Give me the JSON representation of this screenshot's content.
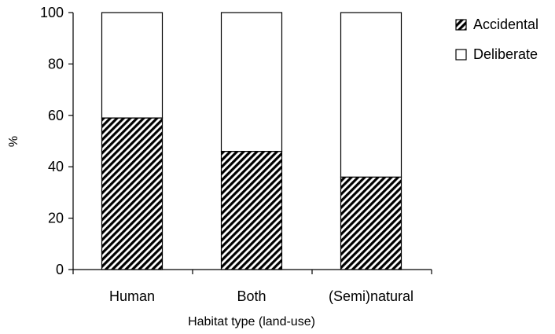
{
  "chart_data": {
    "type": "bar",
    "stacked": true,
    "percent_stacked": true,
    "title": "",
    "xlabel": "Habitat type (land-use)",
    "ylabel": "%",
    "ylim": [
      0,
      100
    ],
    "yticks": [
      0,
      20,
      40,
      60,
      80,
      100
    ],
    "categories": [
      "Human",
      "Both",
      "(Semi)natural"
    ],
    "series": [
      {
        "name": "Accidental",
        "values": [
          59,
          46,
          36
        ],
        "pattern": "diagonal-hatch",
        "color": "#000000"
      },
      {
        "name": "Deliberate",
        "values": [
          41,
          54,
          64
        ],
        "pattern": "none",
        "color": "#ffffff"
      }
    ],
    "grid": false,
    "legend_position": "top-right"
  }
}
